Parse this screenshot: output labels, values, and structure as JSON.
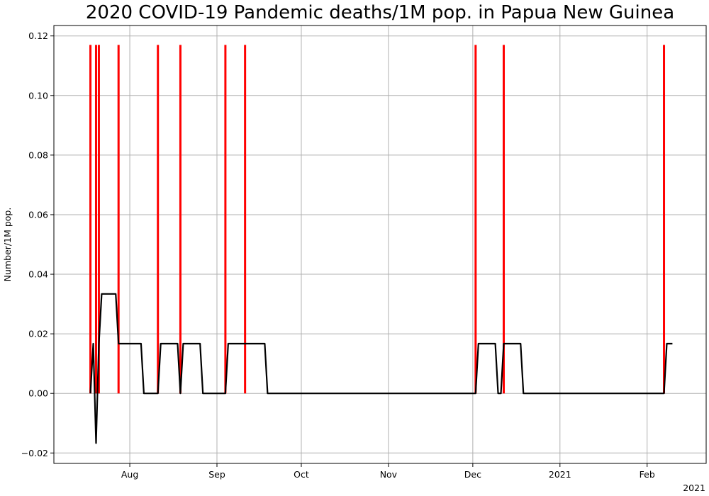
{
  "chart_data": {
    "type": "line",
    "title": "2020 COVID-19 Pandemic deaths/1M pop. in Papua New Guinea",
    "xlabel": "",
    "ylabel": "Number/1M pop.",
    "x_axis_type": "date",
    "xlim": [
      "2020-07-05",
      "2021-02-22"
    ],
    "ylim": [
      -0.0235,
      0.1235
    ],
    "x_ticks": [
      {
        "date": "2020-08-01",
        "label": "Aug"
      },
      {
        "date": "2020-09-01",
        "label": "Sep"
      },
      {
        "date": "2020-10-01",
        "label": "Oct"
      },
      {
        "date": "2020-11-01",
        "label": "Nov"
      },
      {
        "date": "2020-12-01",
        "label": "Dec"
      },
      {
        "date": "2021-01-01",
        "label": "2021"
      },
      {
        "date": "2021-02-01",
        "label": "Feb"
      }
    ],
    "x_offset_label": "2021",
    "y_ticks": [
      {
        "value": -0.02,
        "label": "−0.02"
      },
      {
        "value": 0.0,
        "label": "0.00"
      },
      {
        "value": 0.02,
        "label": "0.02"
      },
      {
        "value": 0.04,
        "label": "0.04"
      },
      {
        "value": 0.06,
        "label": "0.06"
      },
      {
        "value": 0.08,
        "label": "0.08"
      },
      {
        "value": 0.1,
        "label": "0.10"
      },
      {
        "value": 0.12,
        "label": "0.12"
      }
    ],
    "grid": true,
    "colors": {
      "line": "#000000",
      "event_bars": "#ff0000",
      "grid": "#b0b0b0"
    },
    "series": [
      {
        "style": "line",
        "points": [
          [
            "2020-07-18",
            0.0
          ],
          [
            "2020-07-19",
            0.0167
          ],
          [
            "2020-07-20",
            -0.0167
          ],
          [
            "2020-07-21",
            0.0167
          ],
          [
            "2020-07-22",
            0.0334
          ],
          [
            "2020-07-27",
            0.0334
          ],
          [
            "2020-07-28",
            0.0167
          ],
          [
            "2020-08-05",
            0.0167
          ],
          [
            "2020-08-06",
            0.0
          ],
          [
            "2020-08-11",
            0.0
          ],
          [
            "2020-08-12",
            0.0167
          ],
          [
            "2020-08-18",
            0.0167
          ],
          [
            "2020-08-19",
            0.0
          ],
          [
            "2020-08-20",
            0.0167
          ],
          [
            "2020-08-26",
            0.0167
          ],
          [
            "2020-08-27",
            0.0
          ],
          [
            "2020-09-04",
            0.0
          ],
          [
            "2020-09-05",
            0.0167
          ],
          [
            "2020-09-18",
            0.0167
          ],
          [
            "2020-09-19",
            0.0
          ],
          [
            "2020-12-02",
            0.0
          ],
          [
            "2020-12-03",
            0.0167
          ],
          [
            "2020-12-09",
            0.0167
          ],
          [
            "2020-12-10",
            0.0
          ],
          [
            "2020-12-11",
            0.0
          ],
          [
            "2020-12-12",
            0.0167
          ],
          [
            "2020-12-18",
            0.0167
          ],
          [
            "2020-12-19",
            0.0
          ],
          [
            "2021-02-07",
            0.0
          ],
          [
            "2021-02-08",
            0.0167
          ],
          [
            "2021-02-10",
            0.0167
          ]
        ]
      },
      {
        "style": "vertical-bars",
        "value": 0.117,
        "dates": [
          "2020-07-18",
          "2020-07-20",
          "2020-07-21",
          "2020-07-28",
          "2020-08-11",
          "2020-08-19",
          "2020-09-04",
          "2020-09-11",
          "2020-12-02",
          "2020-12-12",
          "2021-02-07"
        ]
      }
    ]
  }
}
